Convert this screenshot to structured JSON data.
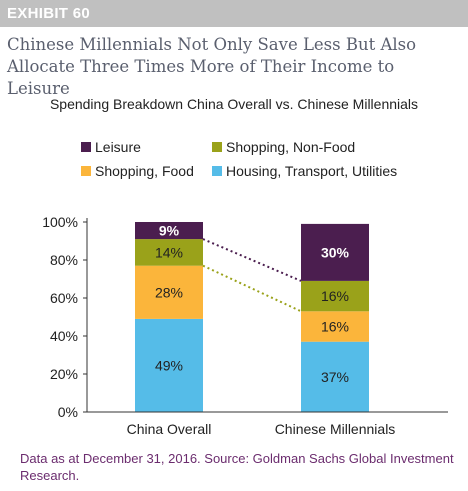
{
  "exhibit_label": "EXHIBIT 60",
  "headline": "Chinese Millennials Not Only Save Less But Also Allocate Three Times More of Their Income to Leisure",
  "source_note": "Data as at December 31, 2016. Source: Goldman Sachs Global Investment Research.",
  "colors": {
    "leisure": "#4b1e4f",
    "shopping_nonfood": "#9aa21a",
    "shopping_food": "#fbb53b",
    "housing": "#55bce8",
    "connector_leisure": "#4b1e4f",
    "connector_nonfood": "#9aa21a",
    "source_text": "#6b2c6e"
  },
  "chart_data": {
    "type": "bar",
    "stacked": true,
    "title": "Spending Breakdown China Overall vs. Chinese Millennials",
    "categories": [
      "China Overall",
      "Chinese Millennials"
    ],
    "series": [
      {
        "name": "Housing, Transport, Utilities",
        "values": [
          49,
          37
        ],
        "labels": [
          "49%",
          "37%"
        ],
        "color": "#55bce8"
      },
      {
        "name": "Shopping, Food",
        "values": [
          28,
          16
        ],
        "labels": [
          "28%",
          "16%"
        ],
        "color": "#fbb53b"
      },
      {
        "name": "Shopping, Non-Food",
        "values": [
          14,
          16
        ],
        "labels": [
          "14%",
          "16%"
        ],
        "color": "#9aa21a"
      },
      {
        "name": "Leisure",
        "values": [
          9,
          30
        ],
        "labels": [
          "9%",
          "30%"
        ],
        "color": "#4b1e4f"
      }
    ],
    "legend_order": [
      "Leisure",
      "Shopping, Non-Food",
      "Shopping, Food",
      "Housing, Transport, Utilities"
    ],
    "ylim": [
      0,
      100
    ],
    "yticks": [
      "0%",
      "20%",
      "40%",
      "60%",
      "80%",
      "100%"
    ],
    "ytick_values": [
      0,
      20,
      40,
      60,
      80,
      100
    ],
    "grid": false,
    "legend_position": "top",
    "connectors": [
      "Leisure",
      "Shopping, Non-Food"
    ]
  }
}
